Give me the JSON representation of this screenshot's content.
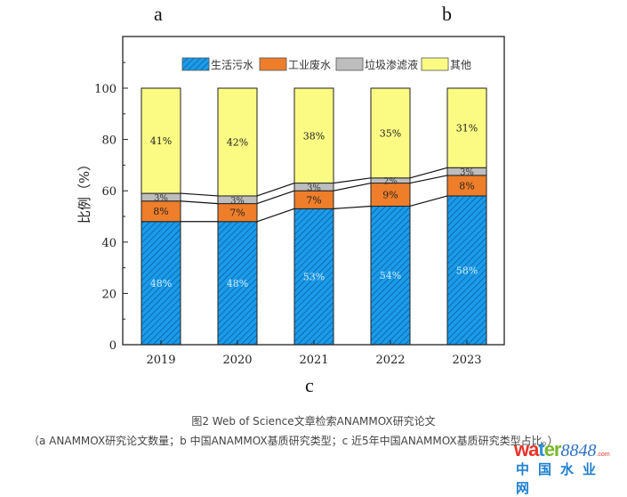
{
  "panel_labels": {
    "a": "a",
    "b": "b",
    "c": "c"
  },
  "chart_data": {
    "type": "bar",
    "stacked": true,
    "title": "",
    "xlabel": "",
    "ylabel": "比例（%）",
    "categories": [
      "2019",
      "2020",
      "2021",
      "2022",
      "2023"
    ],
    "ylim": [
      0,
      120
    ],
    "yticks": [
      0,
      20,
      40,
      60,
      80,
      100
    ],
    "grid": false,
    "legend_position": "top",
    "connector_lines": true,
    "series": [
      {
        "name": "生活污水",
        "color": "#1a9bea",
        "hatch": true,
        "label_color": "#cfeeff",
        "values": [
          48,
          48,
          53,
          54,
          58
        ],
        "labels": [
          "48%",
          "48%",
          "53%",
          "54%",
          "58%"
        ]
      },
      {
        "name": "工业废水",
        "color": "#ee7e2a",
        "hatch": false,
        "label_color": "#222222",
        "values": [
          8,
          7,
          7,
          9,
          8
        ],
        "labels": [
          "8%",
          "7%",
          "7%",
          "9%",
          "8%"
        ]
      },
      {
        "name": "垃圾渗滤液",
        "color": "#bdbdbd",
        "hatch": false,
        "label_color": "#333333",
        "values": [
          3,
          3,
          3,
          2,
          3
        ],
        "labels": [
          "3%",
          "3%",
          "3%",
          "2%",
          "3%"
        ]
      },
      {
        "name": "其他",
        "color": "#fbfb83",
        "hatch": false,
        "label_color": "#222222",
        "values": [
          41,
          42,
          38,
          35,
          31
        ],
        "labels": [
          "41%",
          "42%",
          "38%",
          "35%",
          "31%"
        ]
      }
    ]
  },
  "caption": {
    "title": "图2  Web of Science文章检索ANAMMOX研究论文",
    "subtitle": "（a ANAMMOX研究论文数量；b 中国ANAMMOX基质研究类型；c 近5年中国ANAMMOX基质研究类型占比。）"
  },
  "watermark": {
    "brand_part1": "wa",
    "brand_part2": "t",
    "brand_part3": "er",
    "number": "8848",
    "domain": ".com",
    "chinese": "中国水业网"
  }
}
